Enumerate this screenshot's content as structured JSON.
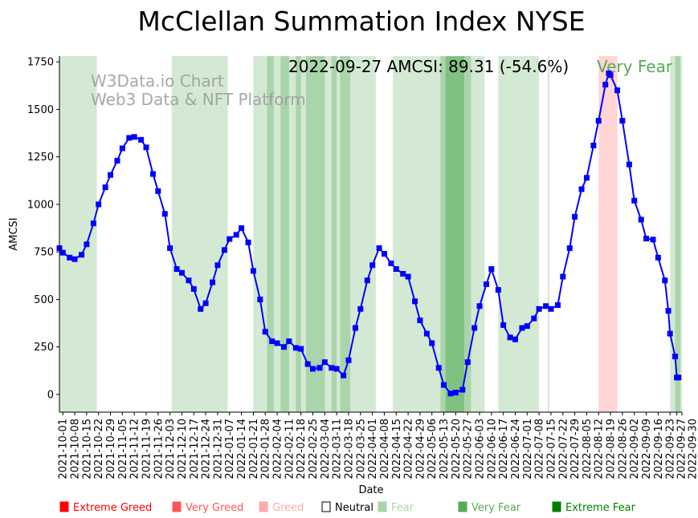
{
  "chart_data": {
    "type": "line",
    "title": "McClellan Summation Index NYSE",
    "xlabel": "Date",
    "ylabel": "AMCSI",
    "xlim": [
      "2021-09-29",
      "2022-09-30"
    ],
    "ylim": [
      -93,
      1780
    ],
    "yticks": [
      0,
      250,
      500,
      750,
      1000,
      1250,
      1500,
      1750
    ],
    "xticks": [
      "2021-10-01",
      "2021-10-08",
      "2021-10-15",
      "2021-10-22",
      "2021-10-29",
      "2021-11-05",
      "2021-11-12",
      "2021-11-19",
      "2021-11-26",
      "2021-12-03",
      "2021-12-10",
      "2021-12-17",
      "2021-12-24",
      "2021-12-31",
      "2022-01-07",
      "2022-01-14",
      "2022-01-21",
      "2022-01-28",
      "2022-02-04",
      "2022-02-11",
      "2022-02-18",
      "2022-02-25",
      "2022-03-04",
      "2022-03-11",
      "2022-03-18",
      "2022-03-25",
      "2022-04-01",
      "2022-04-08",
      "2022-04-15",
      "2022-04-22",
      "2022-04-29",
      "2022-05-06",
      "2022-05-13",
      "2022-05-20",
      "2022-05-27",
      "2022-06-03",
      "2022-06-10",
      "2022-06-17",
      "2022-06-24",
      "2022-07-01",
      "2022-07-08",
      "2022-07-15",
      "2022-07-22",
      "2022-07-29",
      "2022-08-05",
      "2022-08-12",
      "2022-08-19",
      "2022-08-26",
      "2022-09-02",
      "2022-09-09",
      "2022-09-16",
      "2022-09-23",
      "2022-09-27",
      "2022-09-30"
    ],
    "series": [
      {
        "name": "AMCSI",
        "color": "#0000ff",
        "points": [
          [
            "2021-09-29",
            770
          ],
          [
            "2021-10-01",
            746
          ],
          [
            "2021-10-05",
            720
          ],
          [
            "2021-10-08",
            712
          ],
          [
            "2021-10-12",
            735
          ],
          [
            "2021-10-15",
            790
          ],
          [
            "2021-10-19",
            900
          ],
          [
            "2021-10-22",
            1000
          ],
          [
            "2021-10-26",
            1090
          ],
          [
            "2021-10-29",
            1155
          ],
          [
            "2021-11-02",
            1230
          ],
          [
            "2021-11-05",
            1295
          ],
          [
            "2021-11-09",
            1350
          ],
          [
            "2021-11-12",
            1355
          ],
          [
            "2021-11-16",
            1340
          ],
          [
            "2021-11-19",
            1300
          ],
          [
            "2021-11-23",
            1160
          ],
          [
            "2021-11-26",
            1070
          ],
          [
            "2021-11-30",
            950
          ],
          [
            "2021-12-03",
            770
          ],
          [
            "2021-12-07",
            660
          ],
          [
            "2021-12-10",
            640
          ],
          [
            "2021-12-14",
            600
          ],
          [
            "2021-12-17",
            555
          ],
          [
            "2021-12-21",
            450
          ],
          [
            "2021-12-24",
            480
          ],
          [
            "2021-12-28",
            590
          ],
          [
            "2021-12-31",
            680
          ],
          [
            "2022-01-04",
            760
          ],
          [
            "2022-01-07",
            818
          ],
          [
            "2022-01-11",
            840
          ],
          [
            "2022-01-14",
            875
          ],
          [
            "2022-01-18",
            800
          ],
          [
            "2022-01-21",
            650
          ],
          [
            "2022-01-25",
            500
          ],
          [
            "2022-01-28",
            330
          ],
          [
            "2022-02-01",
            280
          ],
          [
            "2022-02-04",
            270
          ],
          [
            "2022-02-08",
            250
          ],
          [
            "2022-02-11",
            280
          ],
          [
            "2022-02-15",
            245
          ],
          [
            "2022-02-18",
            240
          ],
          [
            "2022-02-22",
            160
          ],
          [
            "2022-02-25",
            135
          ],
          [
            "2022-03-01",
            140
          ],
          [
            "2022-03-04",
            170
          ],
          [
            "2022-03-08",
            140
          ],
          [
            "2022-03-11",
            135
          ],
          [
            "2022-03-15",
            100
          ],
          [
            "2022-03-18",
            180
          ],
          [
            "2022-03-22",
            350
          ],
          [
            "2022-03-25",
            450
          ],
          [
            "2022-03-29",
            600
          ],
          [
            "2022-04-01",
            680
          ],
          [
            "2022-04-05",
            770
          ],
          [
            "2022-04-08",
            740
          ],
          [
            "2022-04-12",
            690
          ],
          [
            "2022-04-15",
            660
          ],
          [
            "2022-04-19",
            635
          ],
          [
            "2022-04-22",
            620
          ],
          [
            "2022-04-26",
            490
          ],
          [
            "2022-04-29",
            390
          ],
          [
            "2022-05-03",
            320
          ],
          [
            "2022-05-06",
            270
          ],
          [
            "2022-05-10",
            140
          ],
          [
            "2022-05-13",
            50
          ],
          [
            "2022-05-17",
            5
          ],
          [
            "2022-05-20",
            10
          ],
          [
            "2022-05-24",
            25
          ],
          [
            "2022-05-27",
            170
          ],
          [
            "2022-05-31",
            350
          ],
          [
            "2022-06-03",
            465
          ],
          [
            "2022-06-07",
            580
          ],
          [
            "2022-06-10",
            660
          ],
          [
            "2022-06-14",
            550
          ],
          [
            "2022-06-17",
            365
          ],
          [
            "2022-06-21",
            300
          ],
          [
            "2022-06-24",
            290
          ],
          [
            "2022-06-28",
            350
          ],
          [
            "2022-07-01",
            360
          ],
          [
            "2022-07-05",
            400
          ],
          [
            "2022-07-08",
            450
          ],
          [
            "2022-07-12",
            465
          ],
          [
            "2022-07-15",
            450
          ],
          [
            "2022-07-19",
            470
          ],
          [
            "2022-07-22",
            620
          ],
          [
            "2022-07-26",
            770
          ],
          [
            "2022-07-29",
            935
          ],
          [
            "2022-08-02",
            1080
          ],
          [
            "2022-08-05",
            1140
          ],
          [
            "2022-08-09",
            1310
          ],
          [
            "2022-08-12",
            1440
          ],
          [
            "2022-08-16",
            1630
          ],
          [
            "2022-08-18",
            1690
          ],
          [
            "2022-08-19",
            1680
          ],
          [
            "2022-08-23",
            1600
          ],
          [
            "2022-08-26",
            1440
          ],
          [
            "2022-08-30",
            1210
          ],
          [
            "2022-09-02",
            1020
          ],
          [
            "2022-09-06",
            920
          ],
          [
            "2022-09-09",
            820
          ],
          [
            "2022-09-13",
            815
          ],
          [
            "2022-09-16",
            720
          ],
          [
            "2022-09-20",
            600
          ],
          [
            "2022-09-22",
            440
          ],
          [
            "2022-09-23",
            320
          ],
          [
            "2022-09-26",
            200
          ],
          [
            "2022-09-27",
            89.31
          ],
          [
            "2022-09-28",
            89.31
          ]
        ]
      }
    ],
    "bands": [
      {
        "start": "2021-09-29",
        "end": "2021-10-21",
        "level": "fear"
      },
      {
        "start": "2021-12-04",
        "end": "2022-01-06",
        "level": "fear"
      },
      {
        "start": "2022-01-21",
        "end": "2022-04-03",
        "level": "fear"
      },
      {
        "start": "2022-01-29",
        "end": "2022-02-02",
        "level": "very_fear"
      },
      {
        "start": "2022-02-06",
        "end": "2022-02-11",
        "level": "very_fear"
      },
      {
        "start": "2022-02-15",
        "end": "2022-02-18",
        "level": "very_fear"
      },
      {
        "start": "2022-02-21",
        "end": "2022-03-04",
        "level": "very_fear"
      },
      {
        "start": "2022-03-08",
        "end": "2022-03-11",
        "level": "very_fear"
      },
      {
        "start": "2022-03-13",
        "end": "2022-03-19",
        "level": "very_fear"
      },
      {
        "start": "2022-04-13",
        "end": "2022-06-06",
        "level": "fear"
      },
      {
        "start": "2022-05-11",
        "end": "2022-05-29",
        "level": "very_fear"
      },
      {
        "start": "2022-05-14",
        "end": "2022-05-25",
        "level": "extreme_fear"
      },
      {
        "start": "2022-06-14",
        "end": "2022-07-08",
        "level": "fear"
      },
      {
        "start": "2022-07-13",
        "end": "2022-07-14",
        "level": "fear"
      },
      {
        "start": "2022-08-12",
        "end": "2022-08-23",
        "level": "greed"
      },
      {
        "start": "2022-09-23",
        "end": "2022-09-30",
        "level": "fear"
      },
      {
        "start": "2022-09-26",
        "end": "2022-09-29",
        "level": "very_fear"
      }
    ],
    "band_colors": {
      "fear": "#d4e9d4",
      "very_fear": "#aad4aa",
      "extreme_fear": "#80c080",
      "greed": "#ffd5d5"
    },
    "annotation": {
      "text": "2022-09-27 AMCSI: 89.31 (-54.6%)",
      "status": "Very Fear",
      "status_color": "#55aa55"
    },
    "watermark": [
      "W3Data.io Chart",
      "Web3 Data & NFT Platform"
    ],
    "legend": {
      "placement": "bottom",
      "items": [
        {
          "label": "Extreme Greed",
          "color": "#ff0000"
        },
        {
          "label": "Very Greed",
          "color": "#ff5555"
        },
        {
          "label": "Greed",
          "color": "#ffaaaa"
        },
        {
          "label": "Neutral",
          "color": "#ffffff"
        },
        {
          "label": "Fear",
          "color": "#aad4aa"
        },
        {
          "label": "Very Fear",
          "color": "#55aa55"
        },
        {
          "label": "Extreme Fear",
          "color": "#008000"
        }
      ]
    }
  }
}
